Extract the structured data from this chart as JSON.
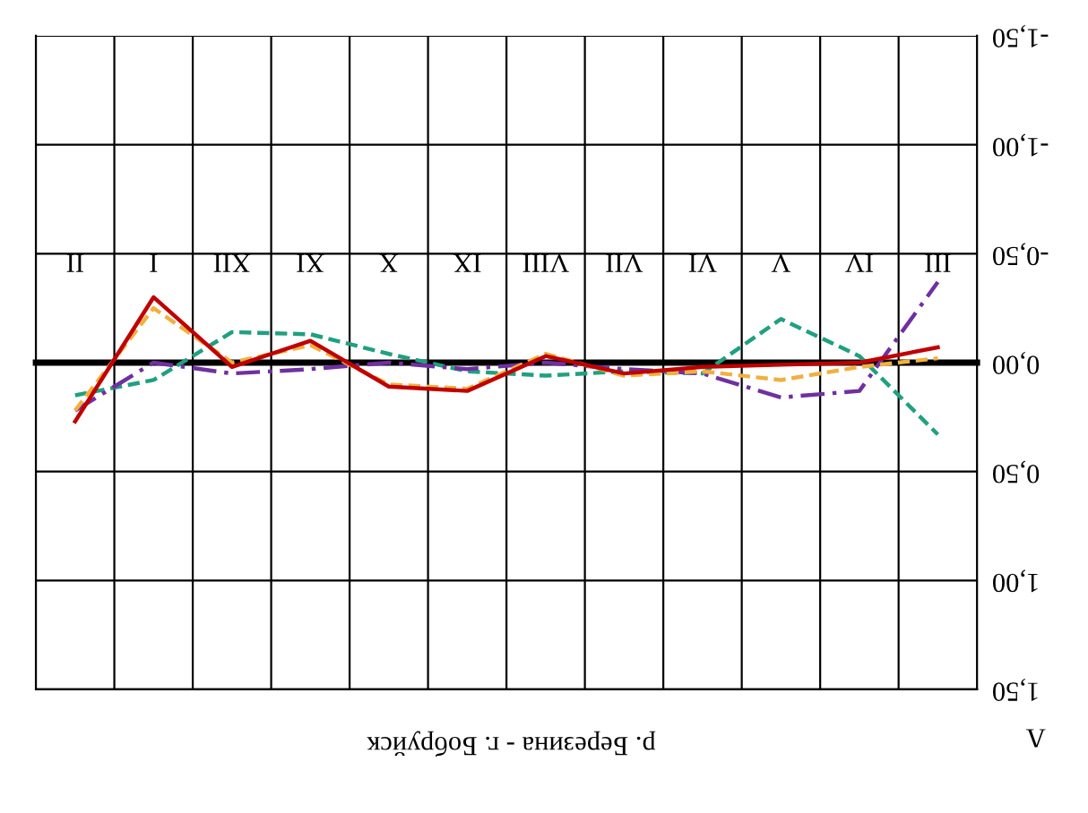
{
  "chart_data": {
    "type": "line",
    "title": "р. Березина - г. Бобруйск",
    "annotations": [
      "Λ"
    ],
    "categories": [
      "II",
      "I",
      "XII",
      "XI",
      "X",
      "IX",
      "VIII",
      "VII",
      "VI",
      "V",
      "IV",
      "III"
    ],
    "series": [
      {
        "color": "#20a080",
        "line_style": "dashed",
        "values": [
          0.15,
          0.08,
          -0.14,
          -0.13,
          -0.04,
          0.04,
          0.06,
          0.04,
          0.05,
          -0.2,
          -0.03,
          0.33
        ]
      },
      {
        "color": "#7030a0",
        "line_style": "dashdot",
        "values": [
          0.22,
          0.0,
          0.05,
          0.03,
          0.0,
          0.03,
          0.0,
          0.03,
          0.05,
          0.16,
          0.13,
          -0.37
        ]
      },
      {
        "color": "#f0b040",
        "line_style": "dashed",
        "values": [
          0.22,
          -0.25,
          0.0,
          -0.08,
          0.1,
          0.12,
          -0.04,
          0.06,
          0.04,
          0.08,
          0.02,
          -0.02
        ]
      },
      {
        "color": "#c00000",
        "line_style": "solid",
        "values": [
          0.27,
          -0.3,
          0.02,
          -0.1,
          0.11,
          0.13,
          -0.03,
          0.05,
          0.02,
          0.01,
          0.0,
          -0.07
        ]
      }
    ],
    "ylim": [
      1.5,
      -1.5
    ],
    "yticks": [
      {
        "value": -1.5,
        "label": "-1,50"
      },
      {
        "value": -1.0,
        "label": "-1,00"
      },
      {
        "value": -0.5,
        "label": "-0,50"
      },
      {
        "value": 0,
        "label": "0,00"
      },
      {
        "value": 0.5,
        "label": "0,50"
      },
      {
        "value": 1.0,
        "label": "1,00"
      },
      {
        "value": 1.5,
        "label": "1,50"
      }
    ],
    "grid": true,
    "legend": false,
    "marker": "none"
  }
}
